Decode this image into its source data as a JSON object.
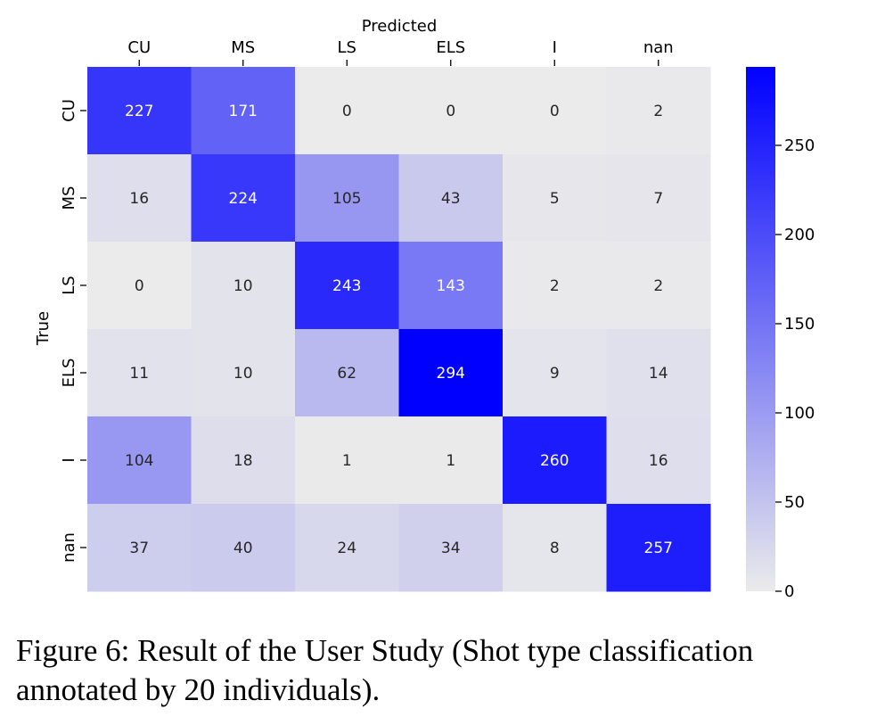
{
  "caption": {
    "line1": "Figure 6: Result of the User Study (Shot type classification",
    "line2": "annotated by 20 individuals)."
  },
  "chart_data": {
    "type": "heatmap",
    "title": "",
    "xlabel": "Predicted",
    "ylabel": "True",
    "x_categories": [
      "CU",
      "MS",
      "LS",
      "ELS",
      "I",
      "nan"
    ],
    "y_categories": [
      "CU",
      "MS",
      "LS",
      "ELS",
      "I",
      "nan"
    ],
    "values": [
      [
        227,
        171,
        0,
        0,
        0,
        2
      ],
      [
        16,
        224,
        105,
        43,
        5,
        7
      ],
      [
        0,
        10,
        243,
        143,
        2,
        2
      ],
      [
        11,
        10,
        62,
        294,
        9,
        14
      ],
      [
        104,
        18,
        1,
        1,
        260,
        16
      ],
      [
        37,
        40,
        24,
        34,
        8,
        257
      ]
    ],
    "colorbar": {
      "min": 0,
      "max": 294,
      "ticks": [
        0,
        50,
        100,
        150,
        200,
        250
      ],
      "colors": {
        "low": "#ebebeb",
        "high": "#0000ff"
      }
    },
    "x_axis_position": "top",
    "text_colors": {
      "light_cell": "#262626",
      "dark_cell": "#ffffff"
    }
  }
}
